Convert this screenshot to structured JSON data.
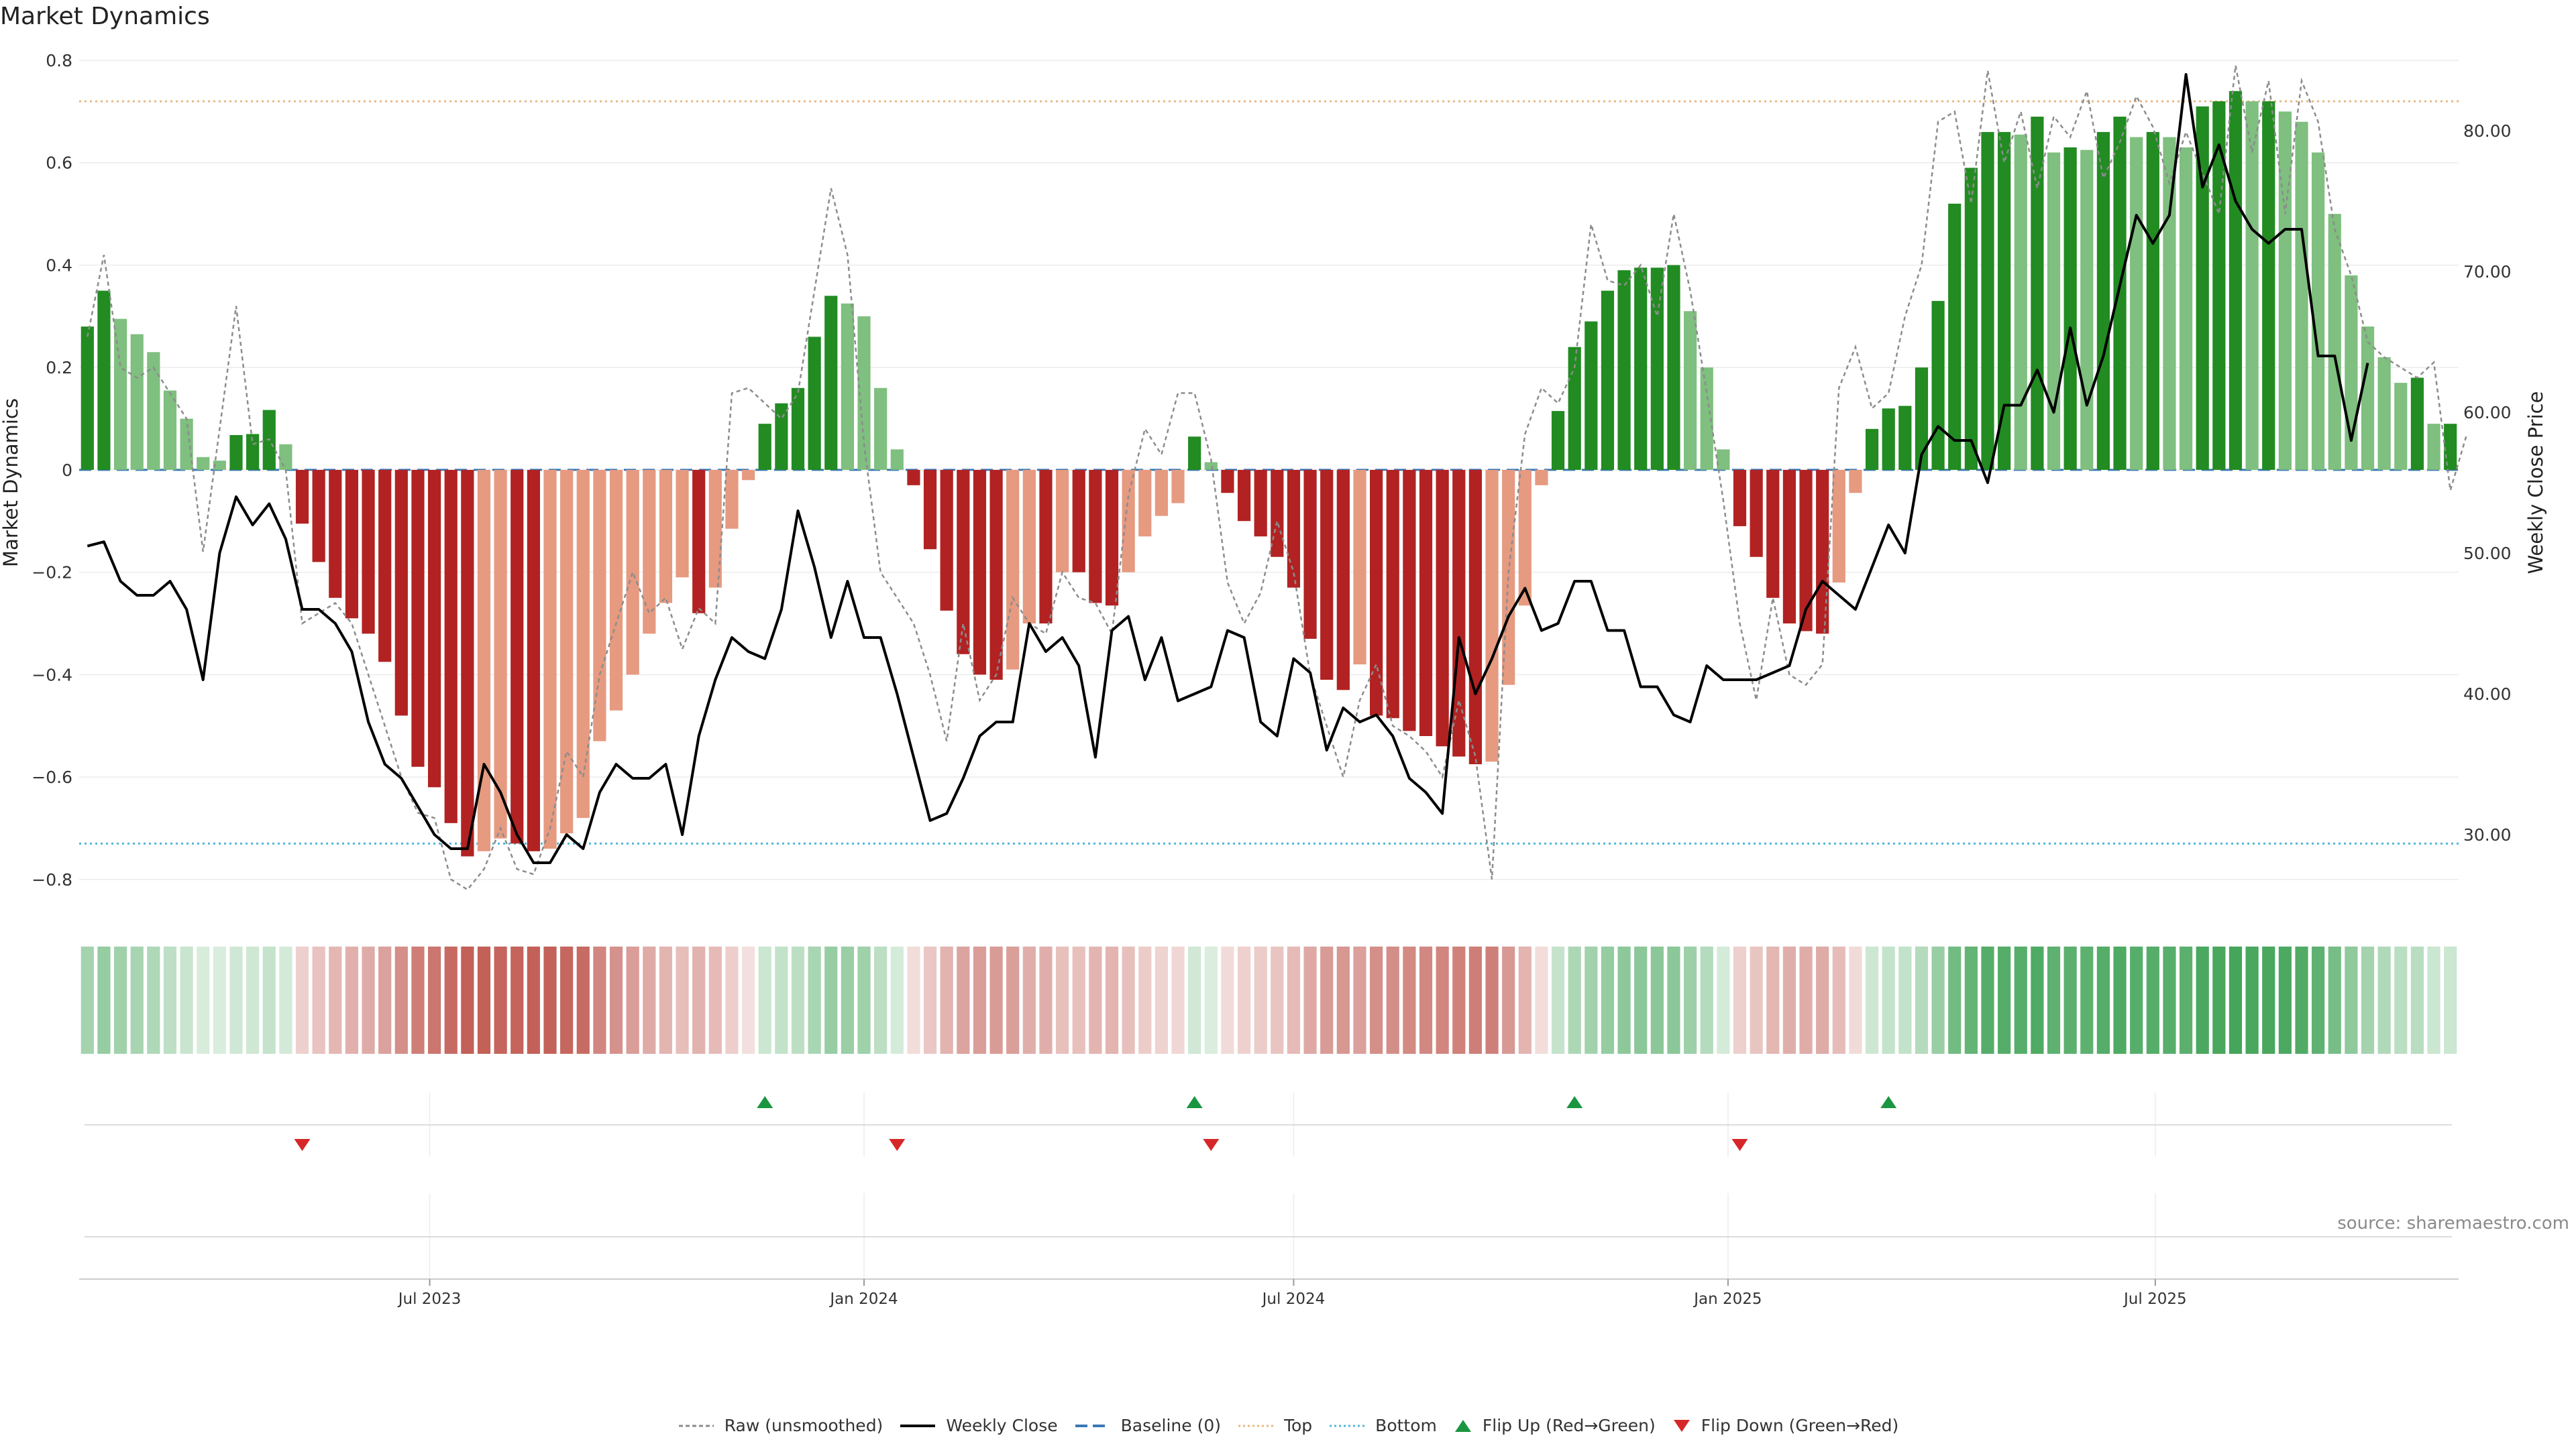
{
  "title": "Market Dynamics",
  "source": "source: sharemaestro.com",
  "colors": {
    "strong_green": "#228b22",
    "light_green": "#7fbf7f",
    "strong_red": "#b22222",
    "light_red": "#e69a80",
    "close_line": "#000000",
    "raw_line": "#8c8c8c",
    "baseline": "#3a78b5",
    "top": "#e8b880",
    "bottom": "#4fb8d8",
    "flip_up": "#1a9641",
    "flip_down": "#d62728"
  },
  "legend": {
    "raw": "Raw (unsmoothed)",
    "close": "Weekly Close",
    "baseline": "Baseline (0)",
    "top": "Top",
    "bottom": "Bottom",
    "flip_up": "Flip Up (Red→Green)",
    "flip_down": "Flip Down (Green→Red)"
  },
  "chart_data": {
    "type": "bar",
    "title": "Market Dynamics",
    "ylabel": "Market Dynamics",
    "y2label": "Weekly Close Price",
    "ylim": [
      -0.85,
      0.8
    ],
    "y2lim": [
      25,
      85
    ],
    "yticks": [
      "0.8",
      "0.6",
      "0.4",
      "0.2",
      "0",
      "−0.2",
      "−0.4",
      "−0.6",
      "−0.8"
    ],
    "y2ticks": [
      "80.00",
      "70.00",
      "60.00",
      "50.00",
      "40.00",
      "30.00"
    ],
    "xticks": [
      "Jul 2023",
      "Jan 2024",
      "Jul 2024",
      "Jan 2025",
      "Jul 2025"
    ],
    "top_level": 0.72,
    "bottom_level": -0.73,
    "baseline": 0,
    "start_week": "2023-02-06",
    "histogram": [
      0.28,
      0.35,
      0.295,
      0.265,
      0.23,
      0.155,
      0.1,
      0.025,
      0.018,
      0.068,
      0.07,
      0.117,
      0.05,
      -0.105,
      -0.18,
      -0.25,
      -0.29,
      -0.32,
      -0.375,
      -0.48,
      -0.58,
      -0.62,
      -0.69,
      -0.755,
      -0.745,
      -0.72,
      -0.73,
      -0.745,
      -0.74,
      -0.71,
      -0.68,
      -0.53,
      -0.47,
      -0.4,
      -0.32,
      -0.26,
      -0.21,
      -0.28,
      -0.23,
      -0.115,
      -0.02,
      0.09,
      0.13,
      0.16,
      0.26,
      0.34,
      0.325,
      0.3,
      0.16,
      0.04,
      -0.03,
      -0.155,
      -0.275,
      -0.36,
      -0.4,
      -0.41,
      -0.39,
      -0.3,
      -0.3,
      -0.2,
      -0.2,
      -0.26,
      -0.265,
      -0.2,
      -0.13,
      -0.09,
      -0.065,
      0.065,
      0.015,
      -0.045,
      -0.1,
      -0.13,
      -0.17,
      -0.23,
      -0.33,
      -0.41,
      -0.43,
      -0.38,
      -0.48,
      -0.485,
      -0.51,
      -0.52,
      -0.54,
      -0.56,
      -0.575,
      -0.57,
      -0.42,
      -0.265,
      -0.03,
      0.115,
      0.24,
      0.29,
      0.35,
      0.39,
      0.395,
      0.395,
      0.4,
      0.31,
      0.2,
      0.04,
      -0.11,
      -0.17,
      -0.25,
      -0.3,
      -0.315,
      -0.32,
      -0.22,
      -0.045,
      0.08,
      0.12,
      0.125,
      0.2,
      0.33,
      0.52,
      0.59,
      0.66,
      0.66,
      0.655,
      0.69,
      0.62,
      0.63,
      0.625,
      0.66,
      0.69,
      0.65,
      0.66,
      0.65,
      0.63,
      0.71,
      0.72,
      0.74,
      0.72,
      0.72,
      0.7,
      0.68,
      0.62,
      0.5,
      0.38,
      0.28,
      0.22,
      0.17,
      0.18,
      0.09,
      0.09
    ],
    "raw": [
      0.26,
      0.42,
      0.2,
      0.18,
      0.2,
      0.15,
      0.1,
      -0.16,
      0.08,
      0.32,
      0.05,
      0.06,
      0.0,
      -0.3,
      -0.28,
      -0.26,
      -0.3,
      -0.4,
      -0.5,
      -0.6,
      -0.67,
      -0.68,
      -0.8,
      -0.82,
      -0.78,
      -0.7,
      -0.78,
      -0.79,
      -0.7,
      -0.55,
      -0.6,
      -0.4,
      -0.3,
      -0.2,
      -0.28,
      -0.25,
      -0.35,
      -0.27,
      -0.3,
      0.15,
      0.16,
      0.13,
      0.1,
      0.15,
      0.35,
      0.55,
      0.42,
      0.05,
      -0.2,
      -0.25,
      -0.3,
      -0.4,
      -0.53,
      -0.3,
      -0.45,
      -0.4,
      -0.25,
      -0.3,
      -0.32,
      -0.2,
      -0.25,
      -0.26,
      -0.32,
      -0.05,
      0.08,
      0.03,
      0.15,
      0.15,
      0.02,
      -0.22,
      -0.3,
      -0.24,
      -0.1,
      -0.2,
      -0.4,
      -0.5,
      -0.6,
      -0.45,
      -0.38,
      -0.5,
      -0.52,
      -0.55,
      -0.6,
      -0.45,
      -0.56,
      -0.8,
      -0.2,
      0.07,
      0.16,
      0.13,
      0.2,
      0.48,
      0.37,
      0.36,
      0.4,
      0.3,
      0.5,
      0.35,
      0.15,
      -0.06,
      -0.3,
      -0.45,
      -0.25,
      -0.4,
      -0.42,
      -0.38,
      0.16,
      0.24,
      0.12,
      0.15,
      0.3,
      0.4,
      0.68,
      0.7,
      0.52,
      0.78,
      0.6,
      0.7,
      0.55,
      0.69,
      0.65,
      0.74,
      0.57,
      0.64,
      0.73,
      0.67,
      0.56,
      0.66,
      0.58,
      0.5,
      0.79,
      0.62,
      0.76,
      0.5,
      0.76,
      0.68,
      0.47,
      0.38,
      0.25,
      0.22,
      0.2,
      0.18,
      0.21,
      -0.04,
      0.07
    ],
    "close": [
      50.5,
      50.8,
      48,
      47,
      47,
      48,
      46,
      41,
      50,
      54,
      52,
      53.5,
      51,
      46,
      46,
      45,
      43,
      38,
      35,
      34,
      32,
      30,
      29,
      29,
      35,
      33,
      30,
      28,
      28,
      30,
      29,
      33,
      35,
      34,
      34,
      35,
      30,
      37,
      41,
      44,
      43,
      42.5,
      46,
      53,
      49,
      44,
      48,
      44,
      44,
      40,
      35.5,
      31,
      31.5,
      34,
      37,
      38,
      38,
      45,
      43,
      44,
      42,
      35.5,
      44.5,
      45.5,
      41,
      44,
      39.5,
      40,
      40.5,
      44.5,
      44,
      38,
      37,
      42.5,
      41.5,
      36,
      39,
      38,
      38.5,
      37,
      34,
      33,
      31.5,
      44,
      40,
      42.5,
      45.5,
      47.5,
      44.5,
      45,
      48,
      48,
      44.5,
      44.5,
      40.5,
      40.5,
      38.5,
      38,
      42,
      41,
      41,
      41,
      41.5,
      42,
      46,
      48,
      47,
      46,
      49,
      52,
      50,
      57,
      59,
      58,
      58,
      55,
      60.5,
      60.5,
      63,
      60,
      66,
      60.5,
      64,
      69,
      74,
      72,
      74,
      84,
      76,
      79,
      75,
      73,
      72,
      73,
      73,
      64,
      64,
      58,
      63.5
    ],
    "flip_up_weeks": [
      41,
      67,
      90,
      109
    ],
    "flip_down_weeks": [
      13,
      49,
      68,
      100
    ]
  }
}
